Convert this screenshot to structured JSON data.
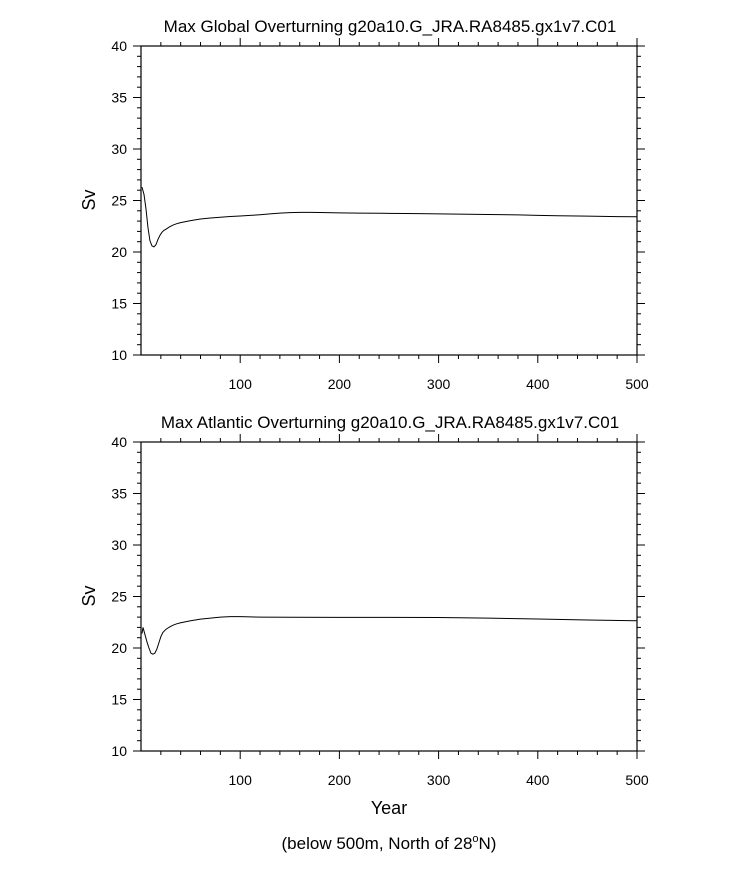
{
  "chart_data": [
    {
      "type": "line",
      "title": "Max Global Overturning g20a10.G_JRA.RA8485.gx1v7.C01",
      "xlabel": "",
      "ylabel": "Sv",
      "xlim": [
        0,
        500
      ],
      "ylim": [
        10,
        40
      ],
      "xticks": [
        100,
        200,
        300,
        400,
        500
      ],
      "yticks": [
        10,
        15,
        20,
        25,
        30,
        35,
        40
      ],
      "grid": false,
      "series": [
        {
          "color": "#000000",
          "x": [
            1,
            3,
            5,
            7,
            9,
            11,
            13,
            15,
            17,
            19,
            21,
            23,
            25,
            28,
            32,
            36,
            40,
            50,
            60,
            70,
            80,
            90,
            100,
            110,
            120,
            130,
            140,
            150,
            160,
            170,
            180,
            200,
            220,
            250,
            280,
            300,
            320,
            350,
            380,
            400,
            420,
            450,
            480,
            500
          ],
          "y": [
            26.3,
            25.6,
            24.2,
            22.4,
            21.1,
            20.6,
            20.5,
            20.7,
            21.2,
            21.6,
            21.9,
            22.1,
            22.2,
            22.4,
            22.6,
            22.75,
            22.85,
            23.05,
            23.2,
            23.3,
            23.38,
            23.45,
            23.5,
            23.55,
            23.62,
            23.7,
            23.78,
            23.82,
            23.85,
            23.85,
            23.83,
            23.8,
            23.78,
            23.75,
            23.72,
            23.7,
            23.68,
            23.64,
            23.6,
            23.56,
            23.52,
            23.48,
            23.44,
            23.42
          ]
        }
      ]
    },
    {
      "type": "line",
      "title": "Max Atlantic Overturning g20a10.G_JRA.RA8485.gx1v7.C01",
      "xlabel": "Year",
      "ylabel": "Sv",
      "xlim": [
        0,
        500
      ],
      "ylim": [
        10,
        40
      ],
      "xticks": [
        100,
        200,
        300,
        400,
        500
      ],
      "yticks": [
        10,
        15,
        20,
        25,
        30,
        35,
        40
      ],
      "grid": false,
      "series": [
        {
          "color": "#000000",
          "x": [
            1,
            2,
            4,
            6,
            8,
            10,
            12,
            14,
            16,
            18,
            20,
            22,
            25,
            28,
            32,
            36,
            40,
            50,
            60,
            70,
            80,
            90,
            100,
            110,
            120,
            150,
            200,
            250,
            300,
            350,
            400,
            450,
            500
          ],
          "y": [
            21.4,
            22.0,
            21.3,
            20.6,
            20.0,
            19.5,
            19.4,
            19.5,
            19.9,
            20.5,
            21.1,
            21.5,
            21.8,
            22.0,
            22.2,
            22.35,
            22.45,
            22.65,
            22.8,
            22.9,
            23.0,
            23.05,
            23.05,
            23.02,
            23.0,
            22.98,
            22.97,
            22.97,
            22.96,
            22.9,
            22.82,
            22.72,
            22.65
          ]
        }
      ]
    }
  ],
  "footnote": {
    "main": "(below 500m, North of 28",
    "superscript": "o",
    "tail": "N)"
  }
}
